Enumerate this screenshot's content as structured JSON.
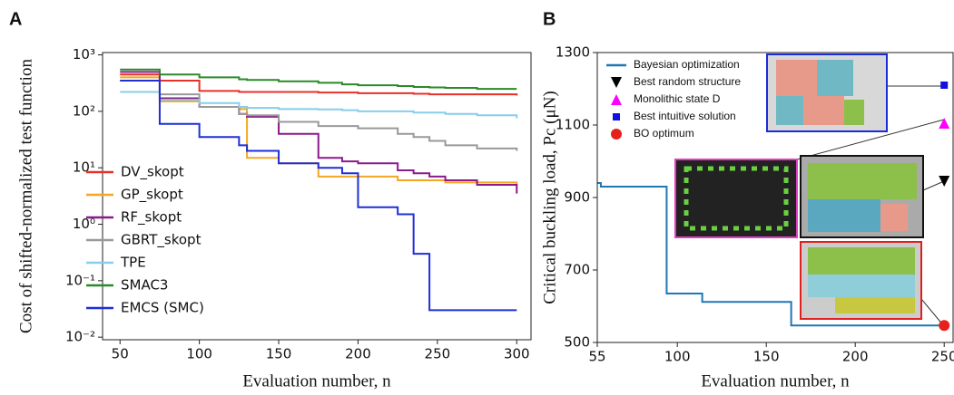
{
  "chart_data": [
    {
      "type": "line",
      "panel": "A",
      "log_y": true,
      "step": "post",
      "y_label": "Cost of shifted-normalized test function",
      "x_label": "Evaluation number, n",
      "xlim": [
        39,
        309
      ],
      "ylim": [
        0.009,
        1100
      ],
      "xticks": [
        50,
        100,
        150,
        200,
        250,
        300
      ],
      "yticks": [
        {
          "value": 1000,
          "label": "10³"
        },
        {
          "value": 100,
          "label": "10²"
        },
        {
          "value": 10,
          "label": "10¹"
        },
        {
          "value": 1,
          "label": "10⁰"
        },
        {
          "value": 0.1,
          "label": "10⁻¹"
        },
        {
          "value": 0.01,
          "label": "10⁻²"
        }
      ],
      "x": [
        50,
        75,
        100,
        125,
        130,
        150,
        175,
        190,
        200,
        225,
        235,
        245,
        255,
        275,
        300
      ],
      "series": [
        {
          "name": "DV_skopt",
          "color": "#e8302a",
          "values": [
            450,
            350,
            230,
            220,
            220,
            220,
            215,
            215,
            210,
            210,
            205,
            200,
            200,
            200,
            190
          ]
        },
        {
          "name": "GP_skopt",
          "color": "#f5a623",
          "values": [
            400,
            150,
            120,
            110,
            15,
            12,
            7,
            7,
            7,
            6,
            6,
            6,
            5.5,
            5.5,
            5
          ]
        },
        {
          "name": "RF_skopt",
          "color": "#8b1a8b",
          "values": [
            500,
            170,
            120,
            90,
            80,
            40,
            15,
            13,
            12,
            9,
            8,
            7,
            6,
            5,
            3.5
          ]
        },
        {
          "name": "GBRT_skopt",
          "color": "#999999",
          "values": [
            350,
            200,
            120,
            90,
            85,
            65,
            55,
            55,
            50,
            40,
            35,
            30,
            25,
            22,
            20
          ]
        },
        {
          "name": "TPE",
          "color": "#87ceeb",
          "values": [
            220,
            160,
            140,
            120,
            115,
            110,
            108,
            105,
            100,
            100,
            95,
            95,
            90,
            85,
            75
          ]
        },
        {
          "name": "SMAC3",
          "color": "#2a8a2a",
          "values": [
            550,
            450,
            400,
            370,
            360,
            340,
            320,
            300,
            290,
            280,
            270,
            265,
            260,
            250,
            250
          ]
        },
        {
          "name": "EMCS (SMC)",
          "color": "#1f2fd6",
          "values": [
            350,
            60,
            35,
            25,
            20,
            12,
            10,
            8,
            2,
            1.5,
            0.3,
            0.03,
            0.03,
            0.03,
            0.03
          ]
        }
      ]
    },
    {
      "type": "line",
      "panel": "B",
      "step": "post",
      "y_label": "Critical buckling load, Pc (μN)",
      "x_label": "Evaluation number, n",
      "xlim": [
        55,
        255
      ],
      "ylim": [
        500,
        1300
      ],
      "xticks": [
        55,
        100,
        150,
        200,
        250
      ],
      "yticks": [
        500,
        700,
        900,
        1100,
        1300
      ],
      "series": [
        {
          "name": "Bayesian optimization",
          "color": "#1f77b4",
          "x": [
            55,
            57,
            94,
            114,
            164,
            250
          ],
          "values": [
            940,
            930,
            635,
            612,
            547,
            547
          ]
        },
        {
          "name": "Best random structure",
          "color": "#000000",
          "marker": "triangle-down",
          "x": [
            250
          ],
          "values": [
            945
          ]
        },
        {
          "name": "Monolithic state D",
          "color": "#ff00ff",
          "marker": "triangle-up",
          "x": [
            250
          ],
          "values": [
            1105
          ]
        },
        {
          "name": "Best intuitive solution",
          "color": "#1010e0",
          "marker": "square",
          "x": [
            250
          ],
          "values": [
            1210
          ]
        },
        {
          "name": "BO optimum",
          "color": "#e8201a",
          "marker": "circle",
          "x": [
            250
          ],
          "values": [
            547
          ]
        }
      ]
    }
  ]
}
